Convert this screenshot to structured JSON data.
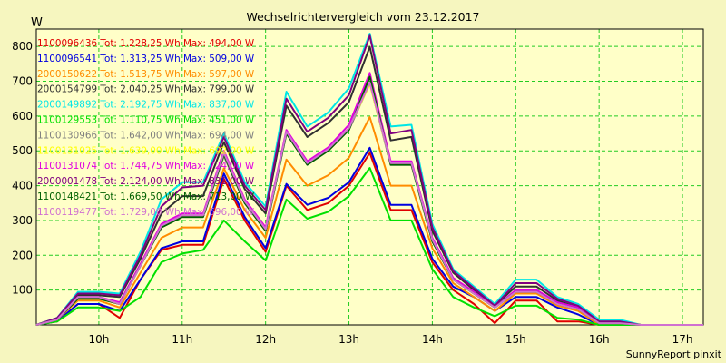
{
  "chart_data": {
    "type": "line",
    "title": "Wechselrichtervergleich vom 23.12.2017",
    "ylabel": "W",
    "xlabel": "",
    "credit": "SunnyReport pinxit",
    "grid": true,
    "legend_position": "top-left, inside plot",
    "xlim": [
      9.25,
      17.25
    ],
    "ylim": [
      0,
      850
    ],
    "x_ticks": [
      "10h",
      "11h",
      "12h",
      "13h",
      "14h",
      "15h",
      "16h",
      "17h"
    ],
    "y_ticks": [
      100,
      200,
      300,
      400,
      500,
      600,
      700,
      800
    ],
    "x": [
      9.25,
      9.5,
      9.75,
      10.0,
      10.25,
      10.5,
      10.75,
      11.0,
      11.25,
      11.5,
      11.75,
      12.0,
      12.25,
      12.5,
      12.75,
      13.0,
      13.25,
      13.5,
      13.75,
      14.0,
      14.25,
      14.5,
      14.75,
      15.0,
      15.25,
      15.5,
      15.75,
      16.0,
      16.25,
      16.5,
      16.75,
      17.0,
      17.25
    ],
    "series": [
      {
        "id": "1100096436",
        "label": "1100096436 Tot: 1.228,25 Wh Max: 494,00 W",
        "color": "#e00000",
        "values": [
          0,
          10,
          60,
          60,
          20,
          130,
          215,
          230,
          230,
          420,
          300,
          210,
          400,
          330,
          350,
          400,
          494,
          330,
          330,
          180,
          100,
          60,
          5,
          70,
          70,
          10,
          10,
          0,
          0,
          0,
          0,
          0,
          0
        ]
      },
      {
        "id": "1100096541",
        "label": "1100096541 Tot: 1.313,25 Wh Max: 509,00 W",
        "color": "#0000e0",
        "values": [
          0,
          10,
          60,
          60,
          40,
          130,
          220,
          240,
          240,
          435,
          310,
          220,
          405,
          345,
          365,
          410,
          509,
          345,
          345,
          190,
          110,
          80,
          40,
          80,
          80,
          50,
          30,
          0,
          0,
          0,
          0,
          0,
          0
        ]
      },
      {
        "id": "2000150622",
        "label": "2000150622 Tot: 1.513,75 Wh Max: 597,00 W",
        "color": "#ff8c00",
        "values": [
          0,
          15,
          70,
          70,
          50,
          150,
          250,
          280,
          280,
          450,
          330,
          250,
          475,
          400,
          430,
          480,
          597,
          400,
          400,
          220,
          120,
          80,
          40,
          90,
          90,
          55,
          40,
          0,
          0,
          0,
          0,
          0,
          0
        ]
      },
      {
        "id": "2000154799",
        "label": "2000154799 Tot: 2.040,25 Wh Max: 799,00 W",
        "color": "#303030",
        "values": [
          0,
          20,
          85,
          85,
          80,
          190,
          320,
          370,
          370,
          525,
          390,
          320,
          630,
          540,
          580,
          640,
          799,
          530,
          540,
          270,
          150,
          100,
          55,
          110,
          110,
          70,
          50,
          10,
          10,
          0,
          0,
          0,
          0
        ]
      },
      {
        "id": "2000149892",
        "label": "2000149892 Tot: 2.192,75 Wh Max: 837,00 W",
        "color": "#00e6e6",
        "values": [
          0,
          20,
          95,
          95,
          90,
          210,
          360,
          410,
          410,
          550,
          410,
          340,
          670,
          570,
          610,
          680,
          837,
          570,
          575,
          290,
          160,
          110,
          60,
          130,
          130,
          80,
          60,
          15,
          15,
          0,
          0,
          0,
          0
        ]
      },
      {
        "id": "1100129553",
        "label": "1100129553 Tot: 1.110,75 Wh Max: 451,00 W",
        "color": "#00e000",
        "values": [
          0,
          10,
          50,
          50,
          40,
          80,
          180,
          205,
          215,
          300,
          240,
          185,
          360,
          305,
          325,
          370,
          451,
          300,
          300,
          160,
          80,
          50,
          25,
          55,
          55,
          20,
          15,
          0,
          0,
          0,
          0,
          0,
          0
        ]
      },
      {
        "id": "1100130966",
        "label": "1100130966 Tot: 1.642,00 Wh Max: 694,00 W",
        "color": "#808080",
        "values": [
          0,
          15,
          75,
          75,
          60,
          170,
          280,
          310,
          310,
          485,
          350,
          270,
          550,
          460,
          500,
          560,
          694,
          460,
          460,
          240,
          130,
          90,
          50,
          95,
          95,
          60,
          45,
          5,
          5,
          0,
          0,
          0,
          0
        ]
      },
      {
        "id": "1100131025",
        "label": "1100131025 Tot: 1.639,00 Wh Max: 692,00 W",
        "color": "#ffff00",
        "values": [
          0,
          15,
          75,
          75,
          60,
          170,
          285,
          315,
          315,
          490,
          355,
          275,
          555,
          465,
          505,
          565,
          692,
          465,
          465,
          245,
          130,
          90,
          50,
          95,
          95,
          60,
          45,
          5,
          5,
          0,
          0,
          0,
          0
        ]
      },
      {
        "id": "1100131074",
        "label": "1100131074 Tot: 1.744,75 Wh Max: 724,00 W",
        "color": "#e000e0",
        "values": [
          0,
          15,
          80,
          80,
          65,
          175,
          290,
          320,
          320,
          500,
          360,
          280,
          560,
          470,
          510,
          575,
          724,
          470,
          470,
          250,
          135,
          95,
          50,
          100,
          100,
          65,
          50,
          5,
          5,
          0,
          0,
          0,
          0
        ]
      },
      {
        "id": "2000001478",
        "label": "2000001478 Tot: 2.124,00 Wh Max: 831,00 W",
        "color": "#800080",
        "values": [
          0,
          20,
          90,
          90,
          85,
          200,
          340,
          395,
          400,
          540,
          400,
          330,
          650,
          555,
          595,
          660,
          831,
          550,
          560,
          280,
          155,
          105,
          55,
          120,
          120,
          75,
          55,
          10,
          10,
          0,
          0,
          0,
          0
        ]
      },
      {
        "id": "1100148421",
        "label": "1100148421 Tot: 1.669,50 Wh Max: 713,00 W",
        "color": "#006000",
        "values": [
          0,
          15,
          75,
          75,
          60,
          170,
          280,
          310,
          310,
          490,
          350,
          270,
          550,
          460,
          500,
          560,
          713,
          460,
          460,
          240,
          130,
          90,
          50,
          95,
          95,
          60,
          45,
          5,
          5,
          0,
          0,
          0,
          0
        ]
      },
      {
        "id": "1100119477",
        "label": "1100119477 Tot: 1.729,00 Wh Max: 696,00 W",
        "color": "#d070d0",
        "values": [
          0,
          15,
          80,
          80,
          60,
          170,
          285,
          315,
          315,
          495,
          355,
          275,
          555,
          465,
          505,
          565,
          696,
          465,
          465,
          245,
          130,
          90,
          50,
          95,
          95,
          60,
          45,
          5,
          5,
          0,
          0,
          0,
          0
        ]
      }
    ]
  }
}
